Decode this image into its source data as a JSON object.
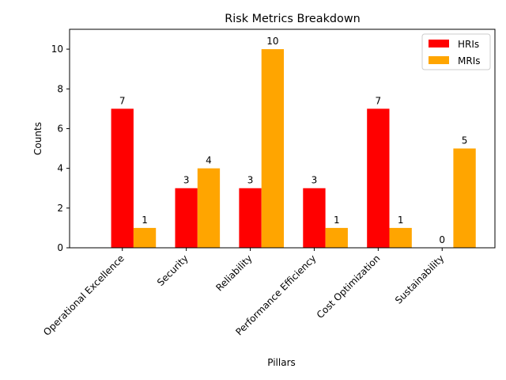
{
  "chart_data": {
    "type": "bar",
    "title": "Risk Metrics Breakdown",
    "xlabel": "Pillars",
    "ylabel": "Counts",
    "categories": [
      "Operational Excellence",
      "Security",
      "Reliability",
      "Performance Efficiency",
      "Cost Optimization",
      "Sustainability"
    ],
    "series": [
      {
        "name": "HRIs",
        "values": [
          7,
          3,
          3,
          3,
          7,
          0
        ],
        "color": "#ff0000"
      },
      {
        "name": "MRIs",
        "values": [
          1,
          4,
          10,
          1,
          1,
          5
        ],
        "color": "#ffa500"
      }
    ],
    "ylim": [
      0,
      11
    ],
    "yticks": [
      0,
      2,
      4,
      6,
      8,
      10
    ],
    "legend": "top-right",
    "grid": false,
    "data_labels": true
  }
}
